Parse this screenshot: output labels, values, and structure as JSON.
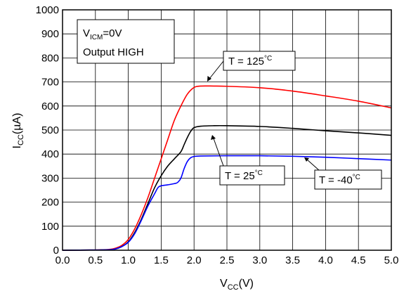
{
  "chart_data": {
    "type": "line",
    "xlim": [
      0.0,
      5.0
    ],
    "ylim": [
      0,
      1000
    ],
    "xticks": [
      "0.0",
      "0.5",
      "1.0",
      "1.5",
      "2.0",
      "2.5",
      "3.0",
      "3.5",
      "4.0",
      "4.5",
      "5.0"
    ],
    "yticks": [
      "0",
      "100",
      "200",
      "300",
      "400",
      "500",
      "600",
      "700",
      "800",
      "900",
      "1000"
    ],
    "xlabel": {
      "main": "V",
      "sub": "CC",
      "unit": "(V)"
    },
    "ylabel": {
      "main": "I",
      "sub": "CC",
      "unit": "(µA)"
    },
    "grid": true,
    "condition_box": {
      "line1_main": "V",
      "line1_sub": "ICM",
      "line1_rest": "=0V",
      "line2": "Output HIGH"
    },
    "series": [
      {
        "name": "T = 125°C",
        "label_main": "T = 125",
        "label_unit": "°C",
        "color": "#ff0000",
        "points": [
          [
            0.0,
            0
          ],
          [
            0.5,
            1
          ],
          [
            0.7,
            3
          ],
          [
            0.8,
            8
          ],
          [
            0.9,
            20
          ],
          [
            1.0,
            45
          ],
          [
            1.1,
            90
          ],
          [
            1.2,
            150
          ],
          [
            1.3,
            220
          ],
          [
            1.4,
            300
          ],
          [
            1.5,
            380
          ],
          [
            1.6,
            460
          ],
          [
            1.7,
            540
          ],
          [
            1.8,
            600
          ],
          [
            1.9,
            650
          ],
          [
            2.0,
            677
          ],
          [
            2.1,
            683
          ],
          [
            2.3,
            683
          ],
          [
            2.5,
            682
          ],
          [
            3.0,
            676
          ],
          [
            3.5,
            662
          ],
          [
            4.0,
            642
          ],
          [
            4.5,
            620
          ],
          [
            5.0,
            592
          ]
        ]
      },
      {
        "name": "T = 25°C",
        "label_main": "T = 25",
        "label_unit": "°C",
        "color": "#000000",
        "points": [
          [
            0.0,
            0
          ],
          [
            0.5,
            1
          ],
          [
            0.7,
            2
          ],
          [
            0.8,
            5
          ],
          [
            0.9,
            15
          ],
          [
            1.0,
            35
          ],
          [
            1.1,
            75
          ],
          [
            1.2,
            130
          ],
          [
            1.3,
            195
          ],
          [
            1.4,
            260
          ],
          [
            1.5,
            310
          ],
          [
            1.6,
            350
          ],
          [
            1.7,
            380
          ],
          [
            1.8,
            410
          ],
          [
            1.85,
            440
          ],
          [
            1.9,
            470
          ],
          [
            1.95,
            495
          ],
          [
            2.0,
            510
          ],
          [
            2.1,
            516
          ],
          [
            2.3,
            518
          ],
          [
            2.5,
            518
          ],
          [
            3.0,
            515
          ],
          [
            3.5,
            507
          ],
          [
            4.0,
            497
          ],
          [
            4.5,
            488
          ],
          [
            5.0,
            478
          ]
        ]
      },
      {
        "name": "T = -40°C",
        "label_main": "T = -40",
        "label_unit": "°C",
        "color": "#0000ff",
        "points": [
          [
            0.0,
            0
          ],
          [
            0.5,
            1
          ],
          [
            0.7,
            2
          ],
          [
            0.8,
            5
          ],
          [
            0.9,
            15
          ],
          [
            1.0,
            33
          ],
          [
            1.1,
            70
          ],
          [
            1.2,
            125
          ],
          [
            1.3,
            185
          ],
          [
            1.4,
            235
          ],
          [
            1.45,
            260
          ],
          [
            1.5,
            268
          ],
          [
            1.6,
            272
          ],
          [
            1.7,
            277
          ],
          [
            1.75,
            282
          ],
          [
            1.8,
            300
          ],
          [
            1.85,
            340
          ],
          [
            1.9,
            370
          ],
          [
            1.95,
            385
          ],
          [
            2.0,
            390
          ],
          [
            2.1,
            392
          ],
          [
            2.5,
            393
          ],
          [
            3.0,
            393
          ],
          [
            3.5,
            391
          ],
          [
            4.0,
            387
          ],
          [
            4.5,
            381
          ],
          [
            5.0,
            375
          ]
        ]
      }
    ]
  }
}
